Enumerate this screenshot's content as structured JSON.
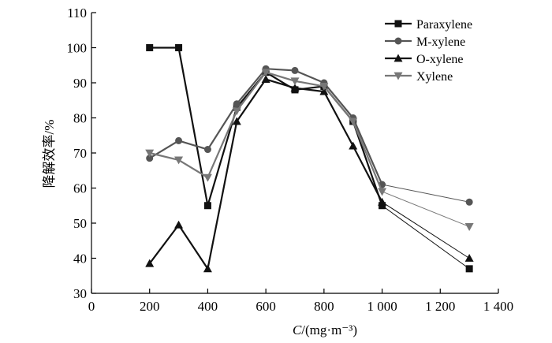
{
  "chart_data": {
    "type": "line",
    "title": "",
    "xlabel": {
      "italic": "C",
      "unit": "/(mg·m⁻³)"
    },
    "ylabel": "降解效率/%",
    "xlim": [
      0,
      1400
    ],
    "ylim": [
      30,
      110
    ],
    "xticks": [
      0,
      200,
      400,
      600,
      800,
      1000,
      1200,
      1400
    ],
    "xtick_labels": [
      "0",
      "200",
      "400",
      "600",
      "800",
      "1 000",
      "1 200",
      "1 400"
    ],
    "yticks": [
      30,
      40,
      50,
      60,
      70,
      80,
      90,
      100,
      110
    ],
    "ytick_labels": [
      "30",
      "40",
      "50",
      "60",
      "70",
      "80",
      "90",
      "100",
      "110"
    ],
    "grid": false,
    "legend_position": "top-right",
    "series": [
      {
        "name": "Paraxylene",
        "color": "#111111",
        "marker": "square",
        "x": [
          200,
          300,
          400,
          500,
          600,
          700,
          800,
          900,
          1000,
          1300
        ],
        "y": [
          100,
          100,
          55,
          83,
          93,
          88,
          89,
          79,
          55,
          37
        ]
      },
      {
        "name": "M-xylene",
        "color": "#555555",
        "marker": "circle",
        "x": [
          200,
          300,
          400,
          500,
          600,
          700,
          800,
          900,
          1000,
          1300
        ],
        "y": [
          68.5,
          73.5,
          71,
          84,
          94,
          93.5,
          90,
          80,
          61,
          56
        ]
      },
      {
        "name": "O-xylene",
        "color": "#111111",
        "marker": "triangle-up",
        "x": [
          200,
          300,
          400,
          500,
          600,
          700,
          800,
          900,
          1000,
          1300
        ],
        "y": [
          38.5,
          49.5,
          37,
          79,
          91,
          88.5,
          87.5,
          72,
          56,
          40
        ]
      },
      {
        "name": "Xylene",
        "color": "#777777",
        "marker": "triangle-down",
        "x": [
          200,
          300,
          400,
          500,
          600,
          700,
          800,
          900,
          1000,
          1300
        ],
        "y": [
          70,
          68,
          63,
          82,
          93,
          90.5,
          89,
          79,
          59,
          49
        ]
      }
    ]
  }
}
